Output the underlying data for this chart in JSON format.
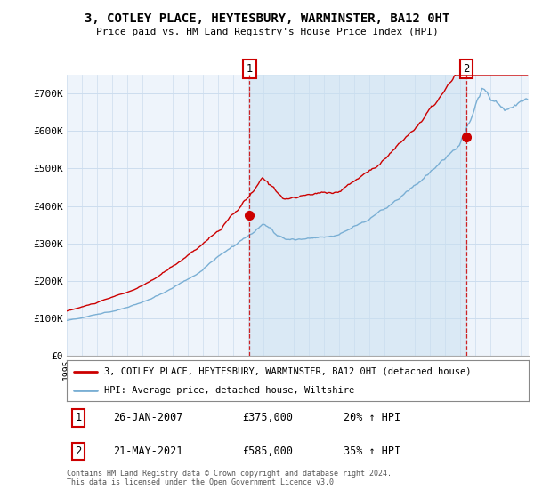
{
  "title": "3, COTLEY PLACE, HEYTESBURY, WARMINSTER, BA12 0HT",
  "subtitle": "Price paid vs. HM Land Registry's House Price Index (HPI)",
  "ylabel_ticks": [
    "£0",
    "£100K",
    "£200K",
    "£300K",
    "£400K",
    "£500K",
    "£600K",
    "£700K"
  ],
  "ytick_vals": [
    0,
    100000,
    200000,
    300000,
    400000,
    500000,
    600000,
    700000
  ],
  "ylim": [
    0,
    750000
  ],
  "xlim_start": 1995.0,
  "xlim_end": 2025.5,
  "sale1_x": 2007.07,
  "sale1_y": 375000,
  "sale2_x": 2021.38,
  "sale2_y": 585000,
  "sale1_label": "1",
  "sale2_label": "2",
  "sale1_text": "26-JAN-2007",
  "sale1_amount": "£375,000",
  "sale1_pct": "20% ↑ HPI",
  "sale2_text": "21-MAY-2021",
  "sale2_amount": "£585,000",
  "sale2_pct": "35% ↑ HPI",
  "legend_line1": "3, COTLEY PLACE, HEYTESBURY, WARMINSTER, BA12 0HT (detached house)",
  "legend_line2": "HPI: Average price, detached house, Wiltshire",
  "footer": "Contains HM Land Registry data © Crown copyright and database right 2024.\nThis data is licensed under the Open Government Licence v3.0.",
  "red_color": "#cc0000",
  "blue_color": "#7aafd4",
  "shade_color": "#ddeeff",
  "grid_color": "#ccddee",
  "bg_color": "#ffffff",
  "chart_bg": "#eef4fb"
}
